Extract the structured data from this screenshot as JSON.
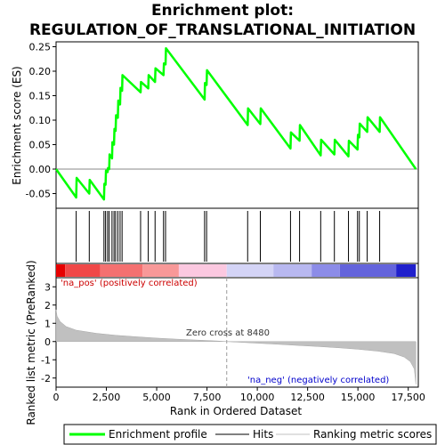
{
  "chart_data": {
    "type": "line",
    "title_line1": "Enrichment plot:",
    "title_line2": "REGULATION_OF_TRANSLATIONAL_INITIATION",
    "top_panel": {
      "ylabel": "Enrichment score (ES)",
      "ylim": [
        -0.08,
        0.26
      ],
      "yticks": [
        -0.05,
        0.0,
        0.05,
        0.1,
        0.15,
        0.2,
        0.25
      ],
      "ytick_labels": [
        "-0.05",
        "0.00",
        "0.05",
        "0.10",
        "0.15",
        "0.20",
        "0.25"
      ],
      "series_name": "Enrichment profile",
      "color": "#00ff00",
      "es_points": [
        [
          0,
          0.0
        ],
        [
          1000,
          -0.058
        ],
        [
          1020,
          -0.018
        ],
        [
          1650,
          -0.05
        ],
        [
          1670,
          -0.022
        ],
        [
          2380,
          -0.062
        ],
        [
          2400,
          -0.03
        ],
        [
          2460,
          -0.032
        ],
        [
          2480,
          -0.003
        ],
        [
          2560,
          -0.006
        ],
        [
          2580,
          0.002
        ],
        [
          2640,
          0.0
        ],
        [
          2660,
          0.03
        ],
        [
          2780,
          0.022
        ],
        [
          2800,
          0.055
        ],
        [
          2880,
          0.05
        ],
        [
          2900,
          0.082
        ],
        [
          2960,
          0.078
        ],
        [
          2980,
          0.11
        ],
        [
          3070,
          0.105
        ],
        [
          3090,
          0.14
        ],
        [
          3180,
          0.132
        ],
        [
          3200,
          0.166
        ],
        [
          3280,
          0.16
        ],
        [
          3300,
          0.192
        ],
        [
          4200,
          0.157
        ],
        [
          4220,
          0.178
        ],
        [
          4580,
          0.165
        ],
        [
          4600,
          0.192
        ],
        [
          4920,
          0.178
        ],
        [
          4940,
          0.206
        ],
        [
          5340,
          0.192
        ],
        [
          5360,
          0.216
        ],
        [
          5440,
          0.214
        ],
        [
          5460,
          0.247
        ],
        [
          7380,
          0.142
        ],
        [
          7400,
          0.176
        ],
        [
          7480,
          0.172
        ],
        [
          7500,
          0.202
        ],
        [
          9520,
          0.09
        ],
        [
          9540,
          0.124
        ],
        [
          10150,
          0.092
        ],
        [
          10170,
          0.124
        ],
        [
          11650,
          0.042
        ],
        [
          11670,
          0.075
        ],
        [
          12100,
          0.058
        ],
        [
          12120,
          0.09
        ],
        [
          13150,
          0.028
        ],
        [
          13170,
          0.06
        ],
        [
          13830,
          0.03
        ],
        [
          13850,
          0.06
        ],
        [
          14530,
          0.026
        ],
        [
          14550,
          0.058
        ],
        [
          14980,
          0.04
        ],
        [
          15000,
          0.07
        ],
        [
          15070,
          0.065
        ],
        [
          15090,
          0.093
        ],
        [
          15460,
          0.076
        ],
        [
          15480,
          0.106
        ],
        [
          16080,
          0.076
        ],
        [
          16100,
          0.106
        ],
        [
          17880,
          0.0
        ]
      ]
    },
    "hits": [
      1000,
      1650,
      2380,
      2460,
      2560,
      2640,
      2780,
      2880,
      2960,
      3070,
      3180,
      3280,
      4200,
      4580,
      4920,
      5340,
      5440,
      7380,
      7480,
      9520,
      10150,
      11650,
      12100,
      13150,
      13830,
      14530,
      14980,
      15070,
      15460,
      16080
    ],
    "bottom_panel": {
      "ylabel": "Ranked list metric (PreRanked)",
      "ylim": [
        -2.5,
        3.5
      ],
      "yticks": [
        -2,
        -1,
        0,
        1,
        2,
        3
      ],
      "ytick_labels": [
        "-2",
        "-1",
        "0",
        "1",
        "2",
        "3"
      ],
      "xlabel": "Rank in Ordered Dataset",
      "xlim": [
        0,
        18000
      ],
      "xticks": [
        0,
        2500,
        5000,
        7500,
        10000,
        12500,
        15000,
        17500
      ],
      "xtick_labels": [
        "0",
        "2,500",
        "5,000",
        "7,500",
        "10,000",
        "12,500",
        "15,000",
        "17,500"
      ],
      "n_genes": 17880,
      "zero_cross": 8480,
      "zero_cross_label": "Zero cross at 8480",
      "pos_label": "'na_pos' (positively correlated)",
      "neg_label": "'na_neg' (negatively correlated)",
      "metric_profile": [
        [
          0,
          1.75
        ],
        [
          50,
          1.4
        ],
        [
          200,
          1.1
        ],
        [
          500,
          0.82
        ],
        [
          1000,
          0.62
        ],
        [
          2000,
          0.45
        ],
        [
          3000,
          0.34
        ],
        [
          4000,
          0.26
        ],
        [
          5000,
          0.19
        ],
        [
          6000,
          0.13
        ],
        [
          7000,
          0.08
        ],
        [
          8000,
          0.03
        ],
        [
          8480,
          0.0
        ],
        [
          9000,
          -0.03
        ],
        [
          10000,
          -0.09
        ],
        [
          11000,
          -0.15
        ],
        [
          12000,
          -0.21
        ],
        [
          13000,
          -0.27
        ],
        [
          14000,
          -0.34
        ],
        [
          15000,
          -0.42
        ],
        [
          16000,
          -0.53
        ],
        [
          16800,
          -0.66
        ],
        [
          17300,
          -0.85
        ],
        [
          17600,
          -1.1
        ],
        [
          17800,
          -1.5
        ],
        [
          17880,
          -2.35
        ]
      ]
    },
    "color_bar": [
      {
        "from": 0,
        "to": 450,
        "color": "#e60000"
      },
      {
        "from": 450,
        "to": 2200,
        "color": "#f04848"
      },
      {
        "from": 2200,
        "to": 4300,
        "color": "#f47070"
      },
      {
        "from": 4300,
        "to": 6100,
        "color": "#f89898"
      },
      {
        "from": 6100,
        "to": 8480,
        "color": "#fbc8e0"
      },
      {
        "from": 8480,
        "to": 10800,
        "color": "#d4d4f6"
      },
      {
        "from": 10800,
        "to": 12700,
        "color": "#b8b8f0"
      },
      {
        "from": 12700,
        "to": 14100,
        "color": "#8c8ce8"
      },
      {
        "from": 14100,
        "to": 16900,
        "color": "#6464dc"
      },
      {
        "from": 16900,
        "to": 17880,
        "color": "#2020cc"
      }
    ],
    "legend": [
      {
        "label": "Enrichment profile",
        "color": "#00ff00"
      },
      {
        "label": "Hits",
        "color": "#000000"
      },
      {
        "label": "Ranking metric scores",
        "color": "#c0c0c0"
      }
    ]
  }
}
